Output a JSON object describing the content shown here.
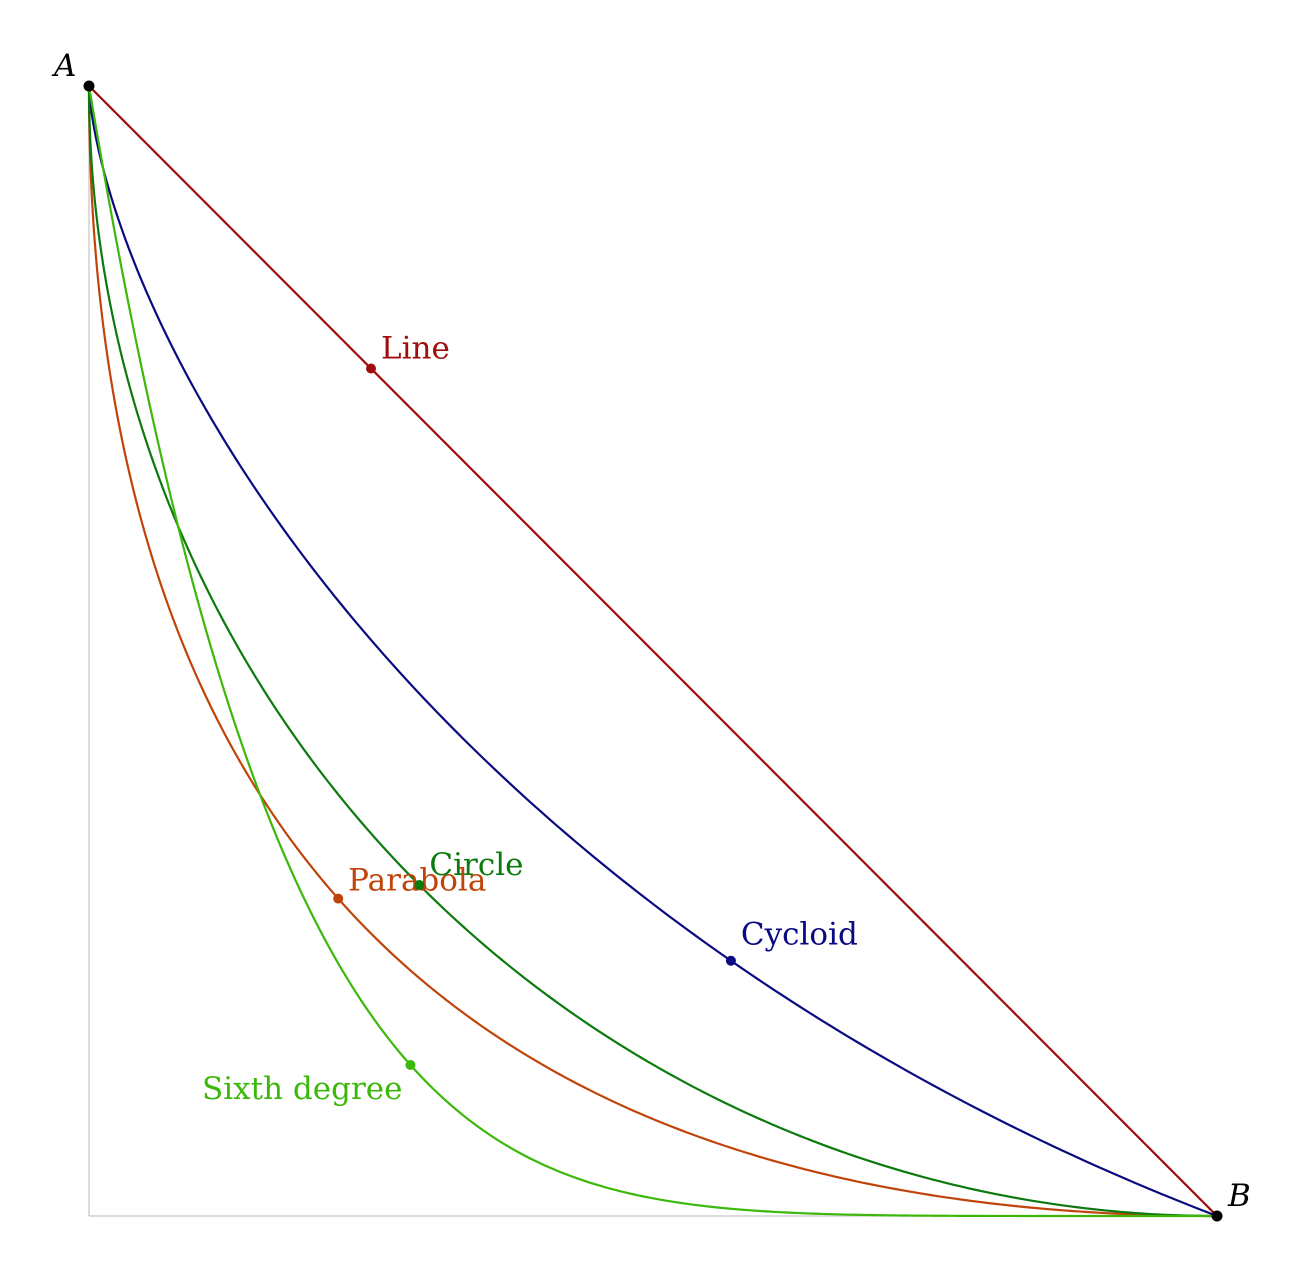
{
  "points": {
    "start": {
      "label": "A",
      "color": "#000000"
    },
    "end": {
      "label": "B",
      "color": "#000000"
    }
  },
  "curves": [
    {
      "id": "line",
      "label": "Line",
      "color": "#a00d0d"
    },
    {
      "id": "parabola",
      "label": "Parabola",
      "color": "#c0440a"
    },
    {
      "id": "cycloid",
      "label": "Cycloid",
      "color": "#0a0a80"
    },
    {
      "id": "circle",
      "label": "Circle",
      "color": "#0c7a0c"
    },
    {
      "id": "sixth",
      "label": "Sixth degree",
      "color": "#3cb80a"
    }
  ]
}
